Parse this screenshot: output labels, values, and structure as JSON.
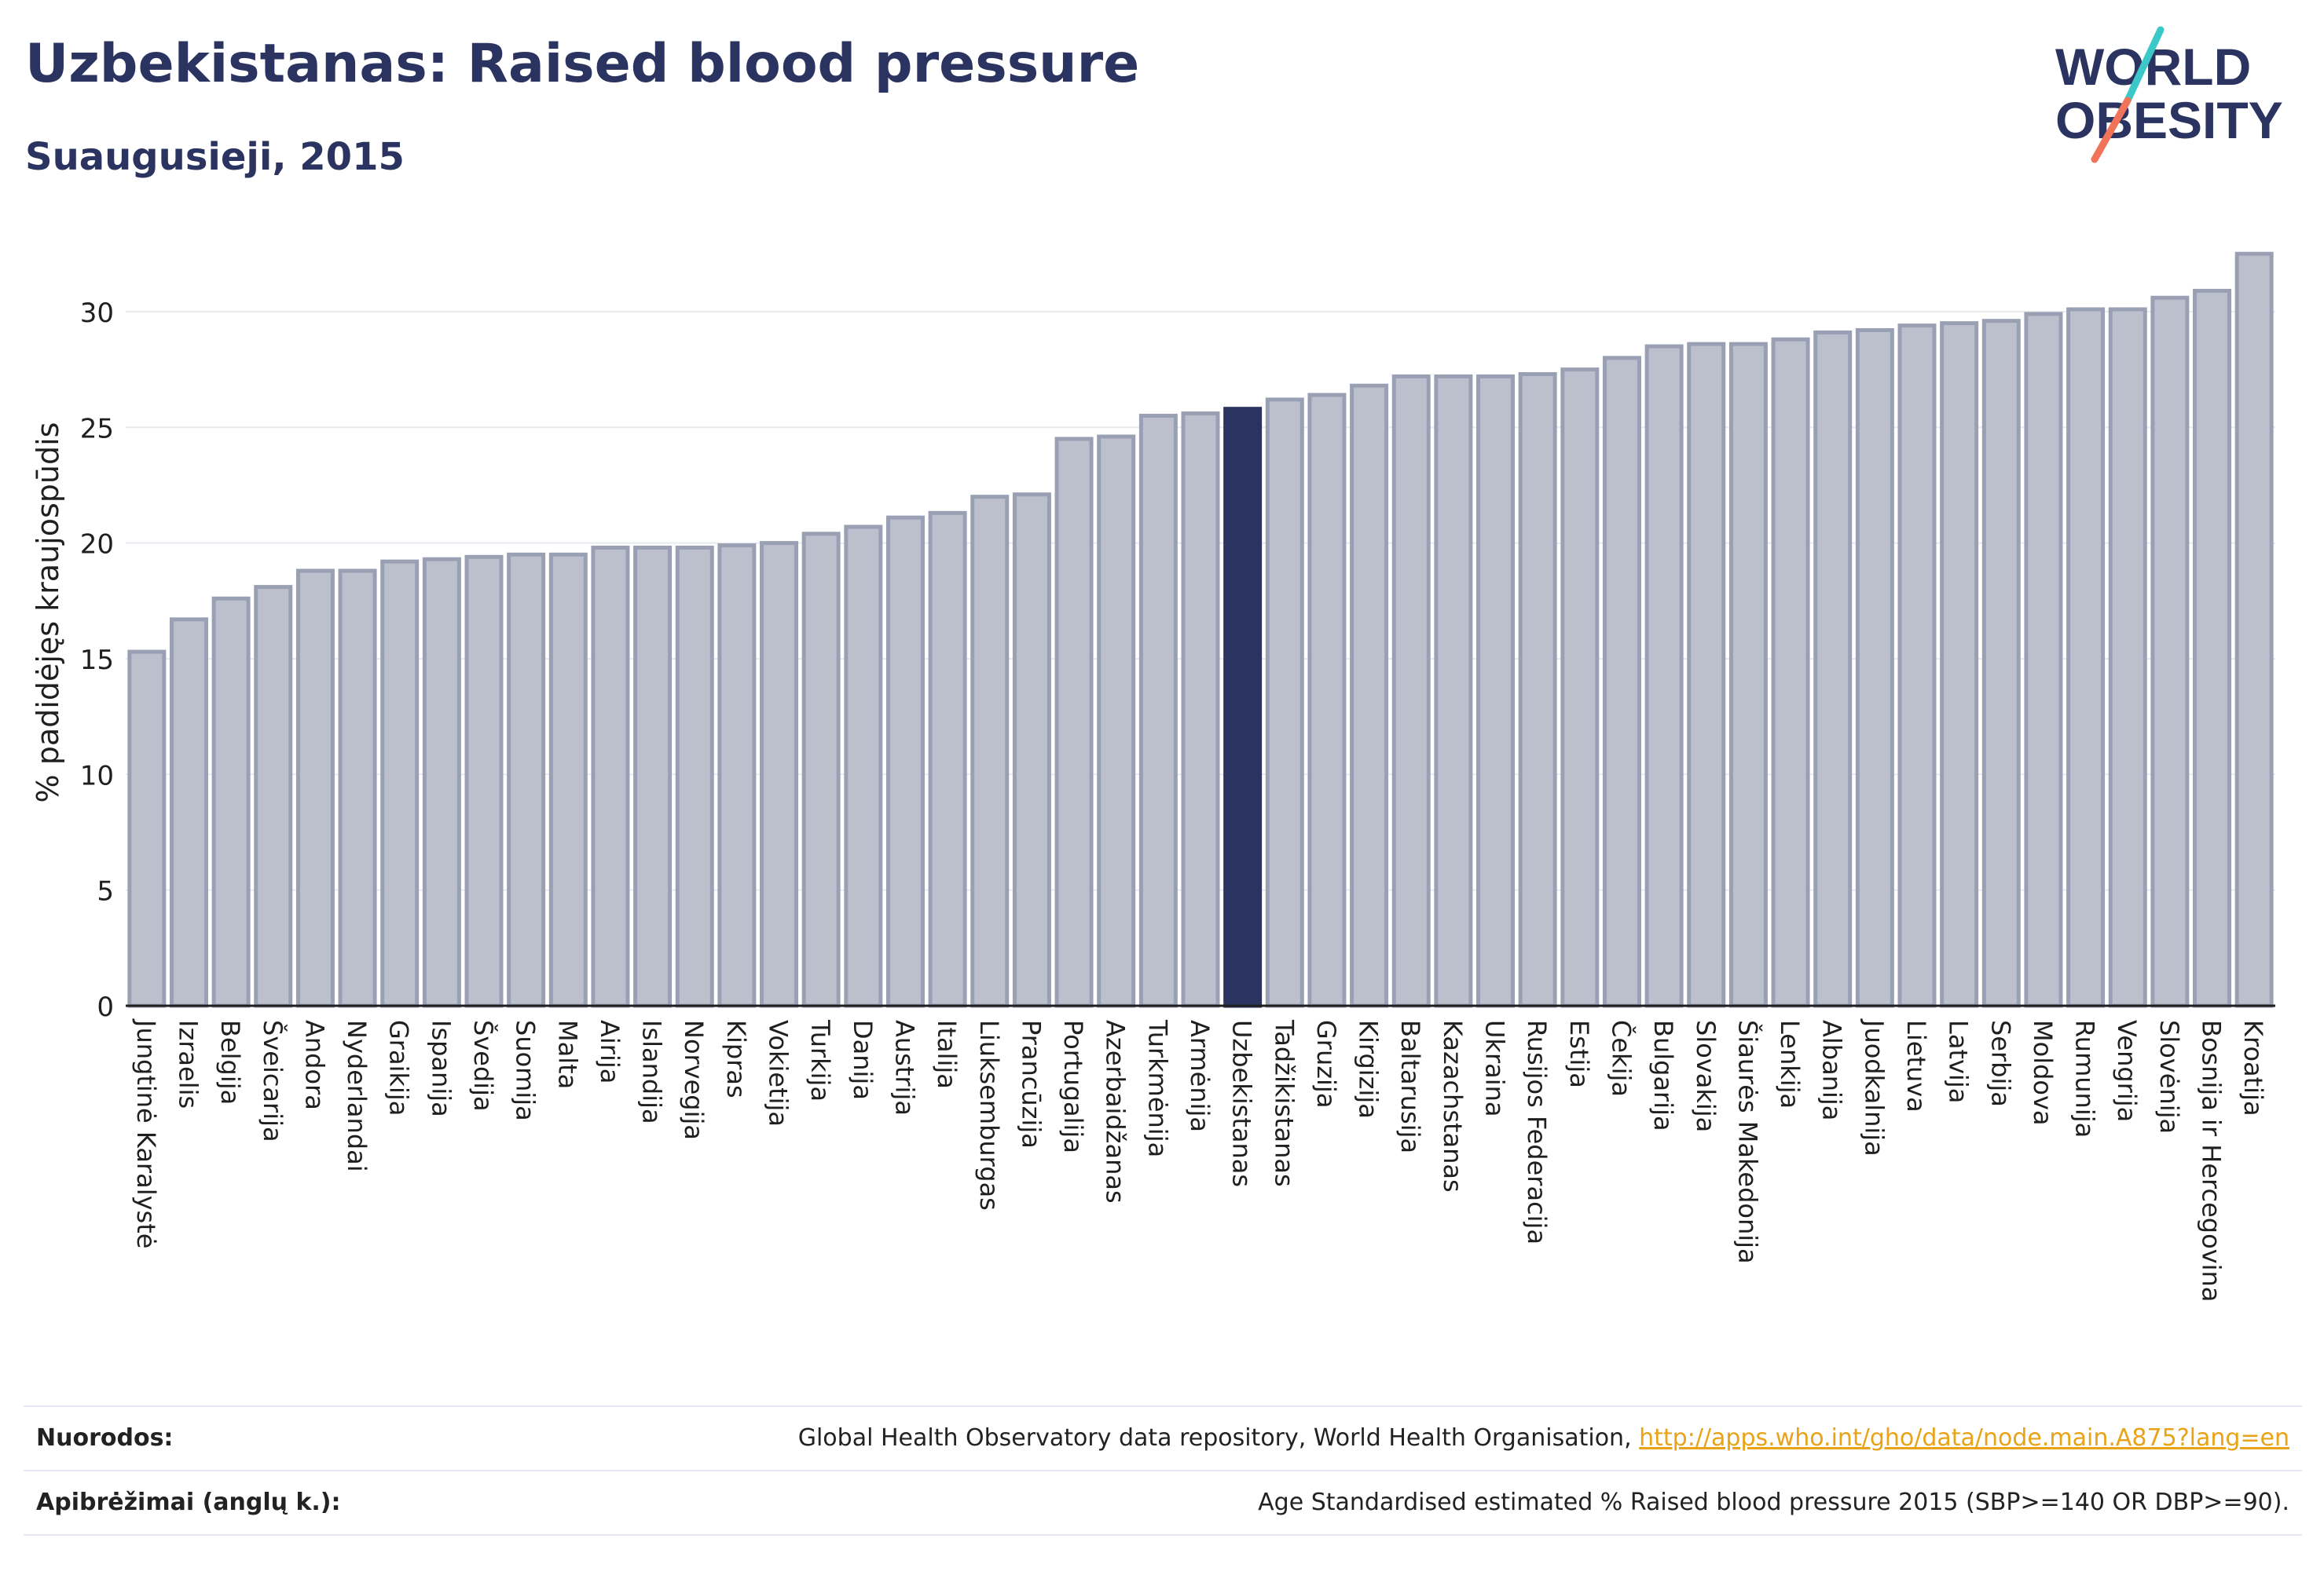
{
  "header": {
    "title": "Uzbekistanas: Raised blood pressure",
    "subtitle": "Suaugusieji, 2015"
  },
  "logo": {
    "line1": "WORLD",
    "line2": "OBESITY",
    "colors": {
      "text": "#2b3460",
      "slash_teal": "#3cc8c8",
      "slash_coral": "#f0735a"
    }
  },
  "colors": {
    "bar_default": "#bcc0cd",
    "bar_default_stroke": "#9aa0b4",
    "bar_highlight": "#2b3460",
    "grid": "#e8eaf0",
    "axis": "#1f1f1f"
  },
  "chart_data": {
    "type": "bar",
    "ylabel": "% padidėjęs kraujospūdis",
    "xlabel": "",
    "ylim": [
      0,
      33
    ],
    "yticks": [
      0,
      5,
      10,
      15,
      20,
      25,
      30
    ],
    "grid": true,
    "highlight": "Uzbekistanas",
    "categories": [
      "Jungtinė Karalystė",
      "Izraelis",
      "Belgija",
      "Šveicarija",
      "Andora",
      "Nyderlandai",
      "Graikija",
      "Ispanija",
      "Švedija",
      "Suomija",
      "Malta",
      "Airija",
      "Islandija",
      "Norvegija",
      "Kipras",
      "Vokietija",
      "Turkija",
      "Danija",
      "Austrija",
      "Italija",
      "Liuksemburgas",
      "Prancūzija",
      "Portugalija",
      "Azerbaidžanas",
      "Turkmėnija",
      "Armėnija",
      "Uzbekistanas",
      "Tadžikistanas",
      "Gruzija",
      "Kirgizija",
      "Baltarusija",
      "Kazachstanas",
      "Ukraina",
      "Rusijos Federacija",
      "Estija",
      "Čekija",
      "Bulgarija",
      "Slovakija",
      "Šiaurės Makedonija",
      "Lenkija",
      "Albanija",
      "Juodkalnija",
      "Lietuva",
      "Latvija",
      "Serbija",
      "Moldova",
      "Rumunija",
      "Vengrija",
      "Slovėnija",
      "Bosnija ir Hercegovina",
      "Kroatija"
    ],
    "values": [
      15.3,
      16.7,
      17.6,
      18.1,
      18.8,
      18.8,
      19.2,
      19.3,
      19.4,
      19.5,
      19.5,
      19.8,
      19.8,
      19.8,
      19.9,
      20.0,
      20.4,
      20.7,
      21.1,
      21.3,
      22.0,
      22.1,
      24.5,
      24.6,
      25.5,
      25.6,
      25.8,
      26.2,
      26.4,
      26.8,
      27.2,
      27.2,
      27.2,
      27.3,
      27.5,
      28.0,
      28.5,
      28.6,
      28.6,
      28.8,
      29.1,
      29.2,
      29.4,
      29.5,
      29.6,
      29.9,
      30.1,
      30.1,
      30.6,
      30.9,
      32.5
    ]
  },
  "footer": {
    "sources_label": "Nuorodos:",
    "sources_text": "Global Health Observatory data repository, World Health Organisation, ",
    "sources_link": "http://apps.who.int/gho/data/node.main.A875?lang=en",
    "definitions_label": "Apibrėžimai (anglų k.):",
    "definitions_text": "Age Standardised estimated % Raised blood pressure 2015 (SBP>=140 OR DBP>=90)."
  }
}
